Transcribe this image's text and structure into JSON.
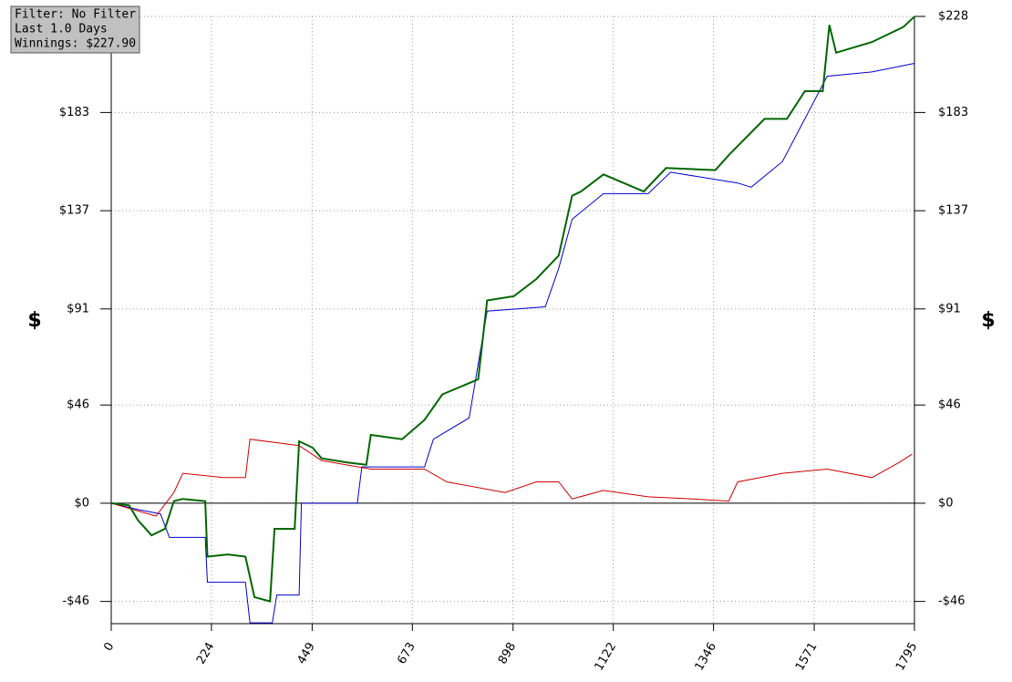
{
  "chart_data": {
    "type": "line",
    "ylabel": "$",
    "y2label": "$",
    "info_lines": [
      "Filter: No Filter",
      "Last 1.0 Days",
      "Winnings: $227.90"
    ],
    "xlim": [
      0,
      1795
    ],
    "xticks": [
      0,
      224,
      449,
      673,
      898,
      1122,
      1346,
      1571,
      1795
    ],
    "ylim": [
      -56.4,
      228
    ],
    "yticks": [
      {
        "value": -46,
        "label": "-$46"
      },
      {
        "value": 0,
        "label": "$0"
      },
      {
        "value": 46,
        "label": "$46"
      },
      {
        "value": 91,
        "label": "$91"
      },
      {
        "value": 137,
        "label": "$137"
      },
      {
        "value": 183,
        "label": "$183"
      },
      {
        "value": 228,
        "label": "$228"
      }
    ],
    "y2lim": [
      -56.4,
      228
    ],
    "y2ticks": [
      {
        "value": -46,
        "label": "-$46"
      },
      {
        "value": 0,
        "label": "$0"
      },
      {
        "value": 46,
        "label": "$46"
      },
      {
        "value": 91,
        "label": "$91"
      },
      {
        "value": 137,
        "label": "$137"
      },
      {
        "value": 183,
        "label": "$183"
      },
      {
        "value": 228,
        "label": "$228"
      }
    ],
    "grid": true,
    "series": [
      {
        "color": "#0000cc",
        "width": 1,
        "x": [
          0,
          60,
          110,
          130,
          210,
          215,
          300,
          310,
          360,
          370,
          420,
          425,
          550,
          560,
          700,
          720,
          800,
          840,
          970,
          1000,
          1030,
          1100,
          1200,
          1250,
          1400,
          1430,
          1500,
          1600,
          1700,
          1795
        ],
        "values": [
          0,
          -3,
          -5,
          -16,
          -16,
          -37,
          -37,
          -56,
          -56,
          -43,
          -43,
          0,
          0,
          17,
          17,
          30,
          40,
          90,
          92,
          110,
          133,
          145,
          145,
          155,
          150,
          148,
          160,
          200,
          202,
          206
        ]
      },
      {
        "color": "#cc0000",
        "width": 1,
        "x": [
          0,
          100,
          140,
          160,
          250,
          300,
          310,
          420,
          470,
          580,
          700,
          750,
          880,
          950,
          1000,
          1030,
          1100,
          1200,
          1300,
          1380,
          1400,
          1500,
          1600,
          1700,
          1760,
          1790
        ],
        "values": [
          0,
          -6,
          5,
          14,
          12,
          12,
          30,
          27,
          20,
          16,
          16,
          10,
          5,
          10,
          10,
          2,
          6,
          3,
          2,
          1,
          10,
          14,
          16,
          12,
          19,
          23
        ]
      },
      {
        "color": "#006600",
        "width": 2,
        "x": [
          0,
          40,
          60,
          90,
          120,
          140,
          160,
          210,
          215,
          260,
          300,
          320,
          355,
          365,
          410,
          420,
          450,
          470,
          530,
          570,
          580,
          650,
          700,
          740,
          820,
          840,
          900,
          950,
          1000,
          1030,
          1050,
          1100,
          1190,
          1240,
          1350,
          1380,
          1460,
          1510,
          1550,
          1590,
          1605,
          1620,
          1700,
          1770,
          1795
        ],
        "values": [
          0,
          -1,
          -8,
          -15,
          -12,
          1,
          2,
          1,
          -25,
          -24,
          -25,
          -44,
          -46,
          -12,
          -12,
          29,
          26,
          21,
          19,
          18,
          32,
          30,
          39,
          51,
          58,
          95,
          97,
          105,
          116,
          144,
          146,
          154,
          146,
          157,
          156,
          163,
          180,
          180,
          193,
          193,
          224,
          211,
          216,
          223,
          227.9
        ]
      }
    ]
  }
}
